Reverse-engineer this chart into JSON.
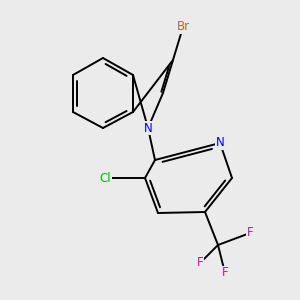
{
  "background_color": "#ebebeb",
  "atom_colors": {
    "Br": "#cc6600",
    "N": "#0000ee",
    "Cl": "#00bb00",
    "F": "#ee00aa",
    "C": "#000000"
  },
  "bond_color": "#000000",
  "bond_width": 1.4,
  "figsize": [
    3.0,
    3.0
  ],
  "dpi": 100
}
